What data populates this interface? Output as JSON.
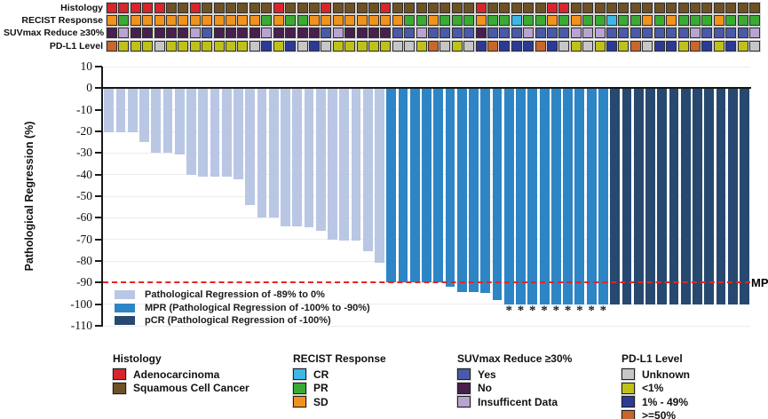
{
  "palette": {
    "adeno": "#d6262b",
    "squam": "#6e5226",
    "sd": "#f0921e",
    "pr": "#3aaa35",
    "cr": "#3db7e4",
    "suv_yes": "#4a5aa8",
    "suv_no": "#47204e",
    "suv_id": "#b7a4d0",
    "pdl1_unknown": "#c6c6c6",
    "pdl1_lt1": "#bfc11b",
    "pdl1_1_49": "#2c3a95",
    "pdl1_ge50": "#c8662b",
    "bar_regression": "#b9c7e4",
    "bar_mpr": "#2e85c5",
    "bar_pcr": "#27496f"
  },
  "annotation_tracks": [
    {
      "label": "Histology",
      "codes": [
        "adeno",
        "adeno",
        "adeno",
        "adeno",
        "adeno",
        "squam",
        "squam",
        "adeno",
        "squam",
        "squam",
        "squam",
        "squam",
        "squam",
        "squam",
        "adeno",
        "squam",
        "squam",
        "squam",
        "adeno",
        "squam",
        "squam",
        "squam",
        "squam",
        "adeno",
        "squam",
        "squam",
        "squam",
        "squam",
        "squam",
        "squam",
        "squam",
        "adeno",
        "squam",
        "squam",
        "squam",
        "squam",
        "squam",
        "adeno",
        "adeno",
        "squam",
        "squam",
        "squam",
        "squam",
        "squam",
        "squam",
        "squam",
        "squam",
        "squam",
        "squam",
        "squam",
        "squam",
        "squam",
        "squam",
        "squam",
        "squam"
      ]
    },
    {
      "label": "RECIST Response",
      "codes": [
        "sd",
        "pr",
        "sd",
        "sd",
        "sd",
        "sd",
        "sd",
        "sd",
        "sd",
        "sd",
        "sd",
        "sd",
        "sd",
        "pr",
        "sd",
        "pr",
        "pr",
        "sd",
        "sd",
        "sd",
        "sd",
        "sd",
        "sd",
        "sd",
        "sd",
        "pr",
        "pr",
        "sd",
        "pr",
        "pr",
        "pr",
        "sd",
        "pr",
        "pr",
        "cr",
        "pr",
        "pr",
        "sd",
        "pr",
        "sd",
        "pr",
        "pr",
        "cr",
        "pr",
        "pr",
        "sd",
        "pr",
        "sd",
        "pr",
        "pr",
        "pr",
        "sd",
        "pr",
        "pr",
        "pr"
      ]
    },
    {
      "label": "SUVmax Reduce ≥30%",
      "codes": [
        "suv_no",
        "suv_id",
        "suv_no",
        "suv_no",
        "suv_no",
        "suv_no",
        "suv_no",
        "suv_id",
        "suv_yes",
        "suv_no",
        "suv_no",
        "suv_no",
        "suv_no",
        "suv_id",
        "suv_no",
        "suv_no",
        "suv_no",
        "suv_no",
        "suv_yes",
        "suv_id",
        "suv_no",
        "suv_no",
        "suv_no",
        "suv_no",
        "suv_yes",
        "suv_yes",
        "suv_id",
        "suv_yes",
        "suv_yes",
        "suv_yes",
        "suv_yes",
        "suv_no",
        "suv_yes",
        "suv_yes",
        "suv_yes",
        "suv_id",
        "suv_yes",
        "suv_yes",
        "suv_yes",
        "suv_id",
        "suv_id",
        "suv_id",
        "suv_yes",
        "suv_yes",
        "suv_yes",
        "suv_yes",
        "suv_yes",
        "suv_yes",
        "suv_yes",
        "suv_id",
        "suv_yes",
        "suv_yes",
        "suv_yes",
        "suv_yes",
        "suv_id"
      ]
    },
    {
      "label": "PD-L1 Level",
      "codes": [
        "pdl1_ge50",
        "pdl1_lt1",
        "pdl1_lt1",
        "pdl1_lt1",
        "pdl1_unknown",
        "pdl1_lt1",
        "pdl1_lt1",
        "pdl1_lt1",
        "pdl1_lt1",
        "pdl1_lt1",
        "pdl1_lt1",
        "pdl1_lt1",
        "pdl1_unknown",
        "pdl1_1_49",
        "pdl1_lt1",
        "pdl1_1_49",
        "pdl1_unknown",
        "pdl1_1_49",
        "pdl1_unknown",
        "pdl1_lt1",
        "pdl1_lt1",
        "pdl1_lt1",
        "pdl1_lt1",
        "pdl1_lt1",
        "pdl1_unknown",
        "pdl1_unknown",
        "pdl1_lt1",
        "pdl1_ge50",
        "pdl1_unknown",
        "pdl1_lt1",
        "pdl1_unknown",
        "pdl1_1_49",
        "pdl1_ge50",
        "pdl1_1_49",
        "pdl1_1_49",
        "pdl1_1_49",
        "pdl1_ge50",
        "pdl1_1_49",
        "pdl1_unknown",
        "pdl1_lt1",
        "pdl1_unknown",
        "pdl1_lt1",
        "pdl1_1_49",
        "pdl1_lt1",
        "pdl1_ge50",
        "pdl1_unknown",
        "pdl1_1_49",
        "pdl1_1_49",
        "pdl1_lt1",
        "pdl1_ge50",
        "pdl1_1_49",
        "pdl1_lt1",
        "pdl1_1_49",
        "pdl1_lt1",
        "pdl1_unknown"
      ]
    }
  ],
  "chart_data": {
    "type": "bar",
    "title": "",
    "xlabel": "",
    "ylabel": "Pathological Regression (%)",
    "ylim": [
      -110,
      10
    ],
    "yticks": [
      10,
      0,
      -10,
      -20,
      -30,
      -40,
      -50,
      -60,
      -70,
      -80,
      -90,
      -100,
      -110
    ],
    "grid": true,
    "n_patients": 55,
    "values": [
      -20.5,
      -20.5,
      -20.5,
      -25,
      -30,
      -30,
      -30.5,
      -40,
      -41,
      -41,
      -41,
      -42,
      -54,
      -60,
      -60,
      -64,
      -64,
      -64.5,
      -66,
      -70,
      -70.5,
      -70.5,
      -75.5,
      -81,
      -90,
      -90,
      -90,
      -90,
      -90,
      -92,
      -94.5,
      -94.5,
      -95,
      -98,
      -100,
      -100,
      -100,
      -100,
      -100,
      -100,
      -100,
      -100,
      -100,
      -100,
      -100,
      -100,
      -100,
      -100,
      -100,
      -100,
      -100,
      -100,
      -100,
      -100,
      -100
    ],
    "bar_segments": [
      {
        "class": "regression",
        "count": 24
      },
      {
        "class": "mpr",
        "count": 19
      },
      {
        "class": "pcr",
        "count": 12
      }
    ],
    "asterisk_bar_indices": [
      34,
      35,
      36,
      37,
      38,
      39,
      40,
      41,
      42
    ],
    "asterisk_symbol": "*",
    "reference_line": {
      "value": -90,
      "label": "MPR",
      "color": "#e8231f",
      "style": "dashed"
    },
    "legend_position": "inside-bottom-left",
    "legend": [
      {
        "key": "bar_regression",
        "label": "Pathological Regression of -89% to 0%"
      },
      {
        "key": "bar_mpr",
        "label": "MPR (Pathological Regression of -100% to -90%)"
      },
      {
        "key": "bar_pcr",
        "label": "pCR (Pathological Regression of -100%)"
      }
    ]
  },
  "bottom_legend": [
    {
      "title": "Histology",
      "items": [
        {
          "label": "Adenocarcinoma",
          "key": "adeno"
        },
        {
          "label": "Squamous Cell Cancer",
          "key": "squam"
        }
      ]
    },
    {
      "title": "RECIST Response",
      "items": [
        {
          "label": "CR",
          "key": "cr"
        },
        {
          "label": "PR",
          "key": "pr"
        },
        {
          "label": "SD",
          "key": "sd"
        }
      ]
    },
    {
      "title": "SUVmax Reduce ≥30%",
      "items": [
        {
          "label": "Yes",
          "key": "suv_yes"
        },
        {
          "label": "No",
          "key": "suv_no"
        },
        {
          "label": "Insufficent Data",
          "key": "suv_id"
        }
      ]
    },
    {
      "title": "PD-L1 Level",
      "items": [
        {
          "label": "Unknown",
          "key": "pdl1_unknown"
        },
        {
          "label": "<1%",
          "key": "pdl1_lt1"
        },
        {
          "label": "1% - 49%",
          "key": "pdl1_1_49"
        },
        {
          "label": ">=50%",
          "key": "pdl1_ge50"
        }
      ]
    }
  ]
}
